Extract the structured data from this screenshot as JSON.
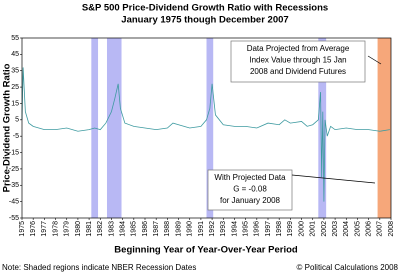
{
  "chart_data": {
    "type": "line",
    "title": "S&P 500 Price-Dividend Growth Ratio with Recessions",
    "subtitle": "January 1975 though December 2007",
    "y_label": "Price-Dividend Growth Ratio",
    "x_label": "Beginning Year of Year-Over-Year Period",
    "note": "Note: Shaded regions indicate NBER Recession Dates",
    "credit": "© Political Calculations 2008",
    "annotations": [
      {
        "lines": [
          "Data Projected from Average",
          "Index Value through 15 Jan",
          "2008 and Dividend Futures"
        ]
      },
      {
        "lines": [
          "With Projected Data",
          "G = -0.08",
          "for January 2008"
        ]
      }
    ],
    "recessions": [
      [
        1981.2,
        1981.8
      ],
      [
        1982.6,
        1983.9
      ],
      [
        1991.5,
        1992.1
      ],
      [
        2001.5,
        2002.2
      ]
    ],
    "recession_color": "#b8b8f4",
    "projection": [
      2006.8,
      2008
    ],
    "projection_color": "#f6a77a",
    "series": [
      {
        "color": "#3d9aa0",
        "x": [
          1975,
          1975.1,
          1975.3,
          1975.6,
          1976,
          1977,
          1978,
          1979,
          1980,
          1981,
          1981.5,
          1982,
          1982.5,
          1983,
          1983.3,
          1983.6,
          1983.8,
          1984.2,
          1985,
          1986,
          1987,
          1988,
          1988.5,
          1989,
          1990,
          1991,
          1991.5,
          1991.8,
          1992,
          1992.3,
          1993,
          1994,
          1995,
          1996,
          1997,
          1998,
          1998.5,
          1999,
          2000,
          2000.5,
          2001,
          2001.5,
          2001.7,
          2001.8,
          2001.9,
          2002,
          2002.1,
          2002.3,
          2002.6,
          2003,
          2004,
          2005,
          2006,
          2007,
          2007.9
        ],
        "values": [
          5,
          37,
          10,
          3,
          1,
          -1,
          -1,
          0,
          -2,
          -1,
          0,
          -1,
          3,
          10,
          18,
          27,
          12,
          3,
          1,
          0,
          -1,
          0,
          3,
          2,
          0,
          1,
          5,
          12,
          27,
          8,
          2,
          1,
          1,
          0,
          3,
          2,
          5,
          3,
          4,
          1,
          2,
          5,
          22,
          -30,
          10,
          -45,
          5,
          -5,
          1,
          -1,
          0,
          -1,
          -1,
          -2,
          -1
        ]
      }
    ],
    "xlim": [
      1975,
      2008
    ],
    "xticks": [
      1975,
      1976,
      1977,
      1978,
      1979,
      1980,
      1981,
      1982,
      1983,
      1984,
      1985,
      1986,
      1987,
      1988,
      1989,
      1990,
      1991,
      1992,
      1993,
      1994,
      1995,
      1996,
      1997,
      1998,
      1999,
      2000,
      2001,
      2002,
      2003,
      2004,
      2005,
      2006,
      2007,
      2008
    ],
    "ylim": [
      -55,
      55
    ],
    "yticks": [
      -55,
      -45,
      -35,
      -25,
      -15,
      -5,
      5,
      15,
      25,
      35,
      45,
      55
    ],
    "grid": false
  }
}
